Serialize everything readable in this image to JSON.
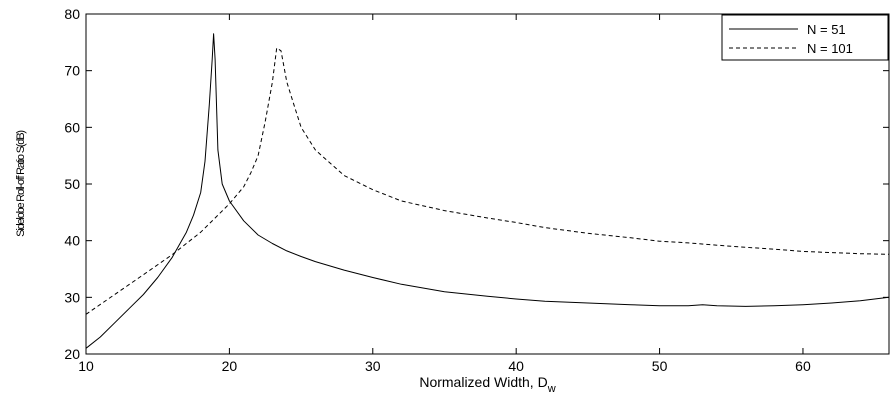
{
  "chart_data": {
    "type": "line",
    "title": "",
    "xlabel": "Normalized Width, D",
    "xlabel_sub": "w",
    "ylabel": "Sidelobe Roll-off Ratio S(dB)",
    "xlim": [
      10,
      66
    ],
    "ylim": [
      20,
      80
    ],
    "xticks": [
      10,
      20,
      30,
      40,
      50,
      60
    ],
    "yticks": [
      20,
      30,
      40,
      50,
      60,
      70,
      80
    ],
    "grid": false,
    "legend_position": "top-right",
    "series": [
      {
        "name": "N = 51",
        "style": "solid",
        "x": [
          10,
          11,
          12,
          13,
          14,
          15,
          16,
          17,
          17.5,
          18,
          18.3,
          18.6,
          18.8,
          18.9,
          19.0,
          19.2,
          19.5,
          20,
          21,
          22,
          23,
          24,
          25,
          26,
          28,
          30,
          32,
          35,
          38,
          40,
          42,
          45,
          48,
          50,
          52,
          53,
          54,
          56,
          58,
          60,
          62,
          64,
          66
        ],
        "values": [
          21,
          23,
          25.5,
          28,
          30.5,
          33.5,
          37,
          41.5,
          44.5,
          48.5,
          54,
          64,
          72,
          76.5,
          72,
          56,
          50,
          47,
          43.5,
          41,
          39.5,
          38.2,
          37.2,
          36.3,
          34.8,
          33.5,
          32.3,
          31,
          30.2,
          29.7,
          29.3,
          29,
          28.7,
          28.5,
          28.5,
          28.7,
          28.5,
          28.4,
          28.5,
          28.7,
          29,
          29.4,
          30
        ]
      },
      {
        "name": "N = 101",
        "style": "dashed",
        "x": [
          10,
          12,
          14,
          16,
          18,
          19,
          20,
          21,
          21.5,
          22,
          22.5,
          23,
          23.3,
          23.6,
          24,
          24.5,
          25,
          26,
          28,
          30,
          32,
          35,
          38,
          40,
          42,
          45,
          48,
          50,
          52,
          55,
          58,
          60,
          62,
          64,
          66
        ],
        "values": [
          27,
          30.5,
          34,
          37.5,
          41.5,
          44,
          46.5,
          49.5,
          52,
          55,
          61,
          68,
          74,
          73.5,
          68,
          64,
          60,
          56,
          51.5,
          49,
          47,
          45.3,
          44,
          43.2,
          42.3,
          41.3,
          40.5,
          39.9,
          39.6,
          39,
          38.5,
          38.1,
          37.9,
          37.7,
          37.6
        ]
      }
    ]
  }
}
